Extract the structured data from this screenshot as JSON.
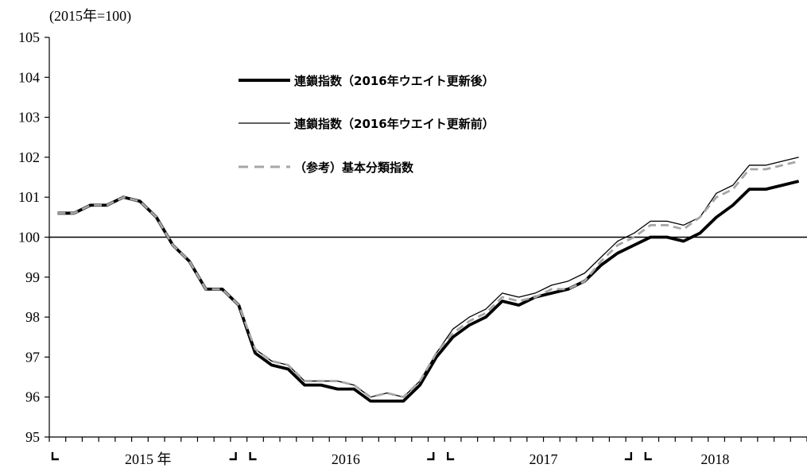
{
  "chart_data": {
    "type": "line",
    "unit_label": "(2015年=100)",
    "ylim": [
      95,
      105
    ],
    "y_ticks": [
      95,
      96,
      97,
      98,
      99,
      100,
      101,
      102,
      103,
      104,
      105
    ],
    "reference_line": 100,
    "x_period_labels": [
      "2015 年",
      "2016",
      "2017",
      "2018"
    ],
    "x_months": [
      "2015-01",
      "2015-02",
      "2015-03",
      "2015-04",
      "2015-05",
      "2015-06",
      "2015-07",
      "2015-08",
      "2015-09",
      "2015-10",
      "2015-11",
      "2015-12",
      "2016-01",
      "2016-02",
      "2016-03",
      "2016-04",
      "2016-05",
      "2016-06",
      "2016-07",
      "2016-08",
      "2016-09",
      "2016-10",
      "2016-11",
      "2016-12",
      "2017-01",
      "2017-02",
      "2017-03",
      "2017-04",
      "2017-05",
      "2017-06",
      "2017-07",
      "2017-08",
      "2017-09",
      "2017-10",
      "2017-11",
      "2017-12",
      "2018-01",
      "2018-02",
      "2018-03",
      "2018-04",
      "2018-05",
      "2018-06",
      "2018-07",
      "2018-08",
      "2018-09",
      "2018-10"
    ],
    "series": [
      {
        "name": "連鎖指数（2016年ウエイト更新後）",
        "color": "#000000",
        "style": "thick-solid",
        "values": [
          100.6,
          100.6,
          100.8,
          100.8,
          101.0,
          100.9,
          100.5,
          99.8,
          99.4,
          98.7,
          98.7,
          98.3,
          97.1,
          96.8,
          96.7,
          96.3,
          96.3,
          96.2,
          96.2,
          95.9,
          95.9,
          95.9,
          96.3,
          97.0,
          97.5,
          97.8,
          98.0,
          98.4,
          98.3,
          98.5,
          98.6,
          98.7,
          98.9,
          99.3,
          99.6,
          99.8,
          100.0,
          100.0,
          99.9,
          100.1,
          100.5,
          100.8,
          101.2,
          101.2,
          101.3,
          101.4
        ]
      },
      {
        "name": "連鎖指数（2016年ウエイト更新前）",
        "color": "#000000",
        "style": "thin-solid",
        "values": [
          100.6,
          100.6,
          100.8,
          100.8,
          101.0,
          100.9,
          100.5,
          99.8,
          99.4,
          98.7,
          98.7,
          98.3,
          97.2,
          96.9,
          96.8,
          96.4,
          96.4,
          96.4,
          96.3,
          96.0,
          96.1,
          96.0,
          96.4,
          97.1,
          97.7,
          98.0,
          98.2,
          98.6,
          98.5,
          98.6,
          98.8,
          98.9,
          99.1,
          99.5,
          99.9,
          100.1,
          100.4,
          100.4,
          100.3,
          100.5,
          101.1,
          101.3,
          101.8,
          101.8,
          101.9,
          102.0
        ]
      },
      {
        "name": "（参考）基本分類指数",
        "color": "#a6a6a6",
        "style": "dashed",
        "values": [
          100.6,
          100.6,
          100.8,
          100.8,
          101.0,
          100.9,
          100.5,
          99.8,
          99.4,
          98.7,
          98.7,
          98.3,
          97.2,
          96.9,
          96.8,
          96.4,
          96.4,
          96.4,
          96.3,
          96.0,
          96.1,
          96.0,
          96.4,
          97.1,
          97.6,
          97.9,
          98.1,
          98.5,
          98.4,
          98.5,
          98.7,
          98.7,
          98.9,
          99.4,
          99.8,
          100.0,
          100.3,
          100.3,
          100.2,
          100.5,
          101.0,
          101.2,
          101.7,
          101.7,
          101.8,
          101.9
        ]
      }
    ]
  }
}
